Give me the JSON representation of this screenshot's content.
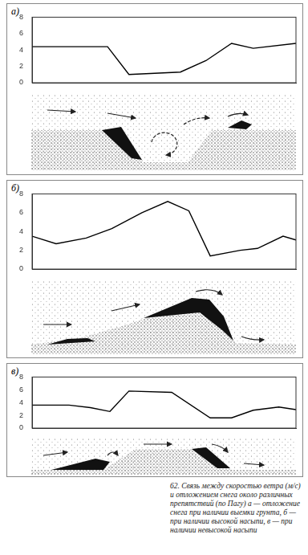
{
  "caption": "62. Связь между скоростью ветра (м/с) и отложением снега около различных препятствий (по Пагу) а — отложение снега при наличии выемки грунта, б — при наличии высокой насыпи, в — при наличии невысокой насыпи",
  "chart_data": [
    {
      "type": "line",
      "title": "а)",
      "color": "#000000",
      "x": [
        0,
        2.86,
        3.67,
        5.62,
        6.59,
        7.56,
        8.38,
        10
      ],
      "values": [
        4.4,
        4.4,
        1.0,
        1.3,
        2.7,
        4.8,
        4.2,
        4.8
      ],
      "xlim": [
        0,
        10
      ],
      "ylim": [
        0,
        8
      ],
      "yticks": [
        0,
        2,
        4,
        6,
        8
      ],
      "grid": false,
      "tick_labels": "y"
    },
    {
      "type": "line",
      "title": "б)",
      "color": "#000000",
      "x": [
        0,
        0.91,
        2.05,
        3.02,
        4.16,
        5.14,
        5.94,
        6.75,
        7.89,
        8.54,
        9.51,
        10
      ],
      "values": [
        3.5,
        2.7,
        3.3,
        4.3,
        6.0,
        7.2,
        6.2,
        1.4,
        2.0,
        2.2,
        3.5,
        3.1
      ],
      "xlim": [
        0,
        10
      ],
      "ylim": [
        0,
        8
      ],
      "yticks": [
        0,
        2,
        4,
        6,
        8
      ],
      "grid": false,
      "tick_labels": "y"
    },
    {
      "type": "line",
      "title": "в)",
      "color": "#000000",
      "x": [
        0,
        1.4,
        2.21,
        2.95,
        3.67,
        5.29,
        6.75,
        7.56,
        8.38,
        9.35,
        10
      ],
      "values": [
        3.6,
        3.6,
        3.2,
        2.6,
        5.8,
        5.6,
        1.6,
        1.6,
        2.8,
        3.3,
        2.9
      ],
      "xlim": [
        0,
        10
      ],
      "ylim": [
        0,
        8
      ],
      "yticks": [
        0,
        2,
        4,
        6,
        8
      ],
      "grid": false,
      "tick_labels": "y"
    }
  ]
}
